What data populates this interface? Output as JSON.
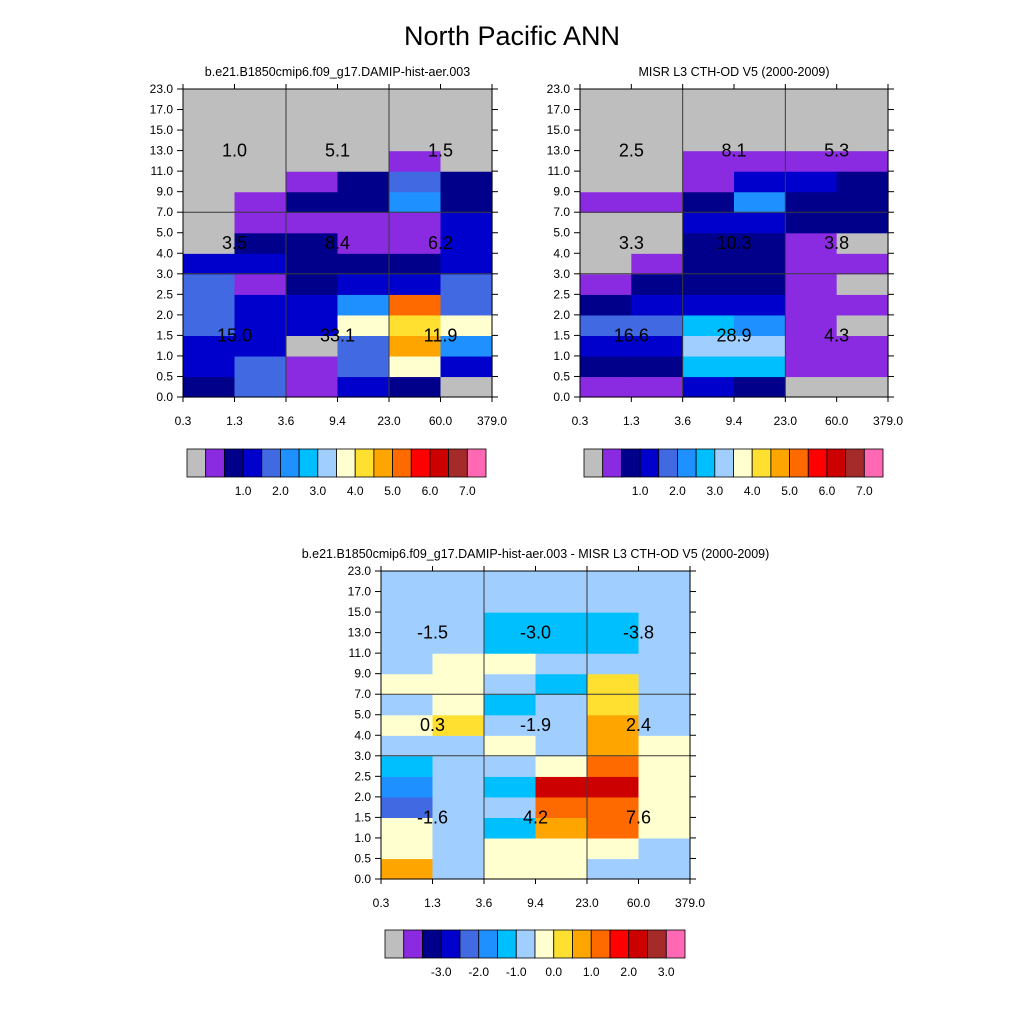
{
  "title": "North Pacific ANN",
  "chart_data": [
    {
      "type": "heatmap",
      "title": "b.e21.B1850cmip6.f09_g17.DAMIP-hist-aer.003",
      "x_ticks": [
        "0.3",
        "1.3",
        "3.6",
        "9.4",
        "23.0",
        "60.0",
        "379.0"
      ],
      "y_ticks": [
        "0.0",
        "0.5",
        "1.0",
        "1.5",
        "2.0",
        "2.5",
        "3.0",
        "4.0",
        "5.0",
        "7.0",
        "9.0",
        "11.0",
        "13.0",
        "15.0",
        "17.0",
        "23.0"
      ],
      "grid": "3x3 group lines",
      "colorbar": {
        "labels": [
          "1.0",
          "2.0",
          "3.0",
          "4.0",
          "5.0",
          "6.0",
          "7.0"
        ],
        "colors": [
          "#bebebe",
          "#8a2be2",
          "#00008b",
          "#0000cd",
          "#4169e1",
          "#1e90ff",
          "#00bfff",
          "#a0cfff",
          "#ffffd0",
          "#ffe030",
          "#ffa500",
          "#ff6a00",
          "#ff0000",
          "#cd0000",
          "#a52a2a",
          "#ff69b4"
        ]
      },
      "cell_values": [
        [
          2,
          3,
          3,
          4,
          4,
          4,
          3,
          0,
          0,
          0,
          0,
          0,
          0,
          0,
          0
        ],
        [
          4,
          4,
          3,
          3,
          3,
          1,
          3,
          2,
          1,
          1,
          0,
          0,
          0,
          0,
          0
        ],
        [
          1,
          1,
          0,
          3,
          3,
          2,
          2,
          2,
          1,
          2,
          1,
          0,
          0,
          0,
          0
        ],
        [
          3,
          4,
          4,
          8,
          5,
          3,
          2,
          1,
          1,
          2,
          2,
          0,
          0,
          0,
          0
        ],
        [
          2,
          8,
          10,
          9,
          11,
          3,
          2,
          1,
          1,
          5,
          4,
          1,
          0,
          0,
          0
        ],
        [
          0,
          3,
          5,
          8,
          4,
          4,
          3,
          3,
          3,
          2,
          2,
          0,
          0,
          0,
          0
        ],
        [
          0,
          2,
          7,
          5,
          0,
          0,
          0,
          0,
          0,
          0,
          0,
          0,
          0,
          0,
          0
        ]
      ],
      "group_labels": [
        [
          "15.0",
          "33.1",
          "11.9"
        ],
        [
          "3.5",
          "8.4",
          "6.2"
        ],
        [
          "1.0",
          "5.1",
          "1.5"
        ]
      ]
    },
    {
      "type": "heatmap",
      "title": "MISR L3 CTH-OD V5 (2000-2009)",
      "x_ticks": [
        "0.3",
        "1.3",
        "3.6",
        "9.4",
        "23.0",
        "60.0",
        "379.0"
      ],
      "y_ticks": [
        "0.0",
        "0.5",
        "1.0",
        "1.5",
        "2.0",
        "2.5",
        "3.0",
        "4.0",
        "5.0",
        "7.0",
        "9.0",
        "11.0",
        "13.0",
        "15.0",
        "17.0",
        "23.0"
      ],
      "grid": "3x3 group lines",
      "colorbar": {
        "labels": [
          "1.0",
          "2.0",
          "3.0",
          "4.0",
          "5.0",
          "6.0",
          "7.0"
        ],
        "colors": [
          "#bebebe",
          "#8a2be2",
          "#00008b",
          "#0000cd",
          "#4169e1",
          "#1e90ff",
          "#00bfff",
          "#a0cfff",
          "#ffffd0",
          "#ffe030",
          "#ffa500",
          "#ff6a00",
          "#ff0000",
          "#cd0000",
          "#a52a2a",
          "#ff69b4"
        ]
      },
      "cell_values": [
        [
          1,
          2,
          3,
          4,
          2,
          1,
          0,
          0,
          0,
          1,
          0,
          0,
          0,
          0,
          0
        ],
        [
          1,
          2,
          3,
          4,
          3,
          2,
          1,
          0,
          0,
          1,
          0,
          0,
          0,
          0,
          0
        ],
        [
          3,
          6,
          7,
          6,
          3,
          2,
          2,
          2,
          3,
          2,
          1,
          1,
          0,
          0,
          0
        ],
        [
          2,
          6,
          7,
          5,
          3,
          2,
          2,
          2,
          3,
          5,
          3,
          1,
          0,
          0,
          0
        ],
        [
          0,
          1,
          1,
          1,
          1,
          1,
          1,
          1,
          2,
          2,
          3,
          1,
          0,
          0,
          0
        ],
        [
          0,
          1,
          1,
          0,
          1,
          0,
          1,
          0,
          2,
          2,
          2,
          1,
          0,
          0,
          0
        ],
        [
          0,
          0,
          0,
          0,
          0,
          0,
          0,
          0,
          0,
          0,
          0,
          0,
          0,
          0,
          0
        ]
      ],
      "group_labels": [
        [
          "16.6",
          "28.9",
          "4.3"
        ],
        [
          "3.3",
          "10.3",
          "3.8"
        ],
        [
          "2.5",
          "8.1",
          "5.3"
        ]
      ]
    },
    {
      "type": "heatmap",
      "title": "b.e21.B1850cmip6.f09_g17.DAMIP-hist-aer.003 - MISR L3 CTH-OD V5 (2000-2009)",
      "x_ticks": [
        "0.3",
        "1.3",
        "3.6",
        "9.4",
        "23.0",
        "60.0",
        "379.0"
      ],
      "y_ticks": [
        "0.0",
        "0.5",
        "1.0",
        "1.5",
        "2.0",
        "2.5",
        "3.0",
        "4.0",
        "5.0",
        "7.0",
        "9.0",
        "11.0",
        "13.0",
        "15.0",
        "17.0",
        "23.0"
      ],
      "grid": "3x3 group lines",
      "colorbar": {
        "labels": [
          "-3.0",
          "-2.0",
          "-1.0",
          "0.0",
          "1.0",
          "2.0",
          "3.0"
        ],
        "colors": [
          "#bebebe",
          "#8a2be2",
          "#00008b",
          "#0000cd",
          "#4169e1",
          "#1e90ff",
          "#00bfff",
          "#a0cfff",
          "#ffffd0",
          "#ffe030",
          "#ffa500",
          "#ff6a00",
          "#ff0000",
          "#cd0000",
          "#a52a2a",
          "#ff69b4"
        ]
      },
      "cell_values": [
        [
          10,
          8,
          8,
          4,
          5,
          6,
          7,
          8,
          7,
          8,
          7,
          7,
          7,
          7,
          7
        ],
        [
          7,
          7,
          7,
          7,
          7,
          7,
          7,
          9,
          8,
          8,
          8,
          7,
          7,
          7,
          7
        ],
        [
          8,
          8,
          6,
          7,
          6,
          7,
          8,
          7,
          6,
          7,
          8,
          6,
          6,
          7,
          7
        ],
        [
          8,
          8,
          10,
          11,
          13,
          8,
          7,
          7,
          7,
          6,
          7,
          6,
          6,
          7,
          7
        ],
        [
          7,
          8,
          11,
          11,
          13,
          11,
          10,
          10,
          9,
          9,
          7,
          6,
          6,
          7,
          7
        ],
        [
          7,
          7,
          8,
          8,
          8,
          8,
          8,
          7,
          7,
          7,
          7,
          7,
          7,
          7,
          7
        ],
        [
          7,
          7,
          7,
          7,
          7,
          7,
          7,
          7,
          7,
          7,
          7,
          7,
          7,
          7,
          7
        ]
      ],
      "group_labels": [
        [
          "-1.6",
          "4.2",
          "7.6"
        ],
        [
          "0.3",
          "-1.9",
          "2.4"
        ],
        [
          "-1.5",
          "-3.0",
          "-3.8"
        ]
      ]
    }
  ]
}
